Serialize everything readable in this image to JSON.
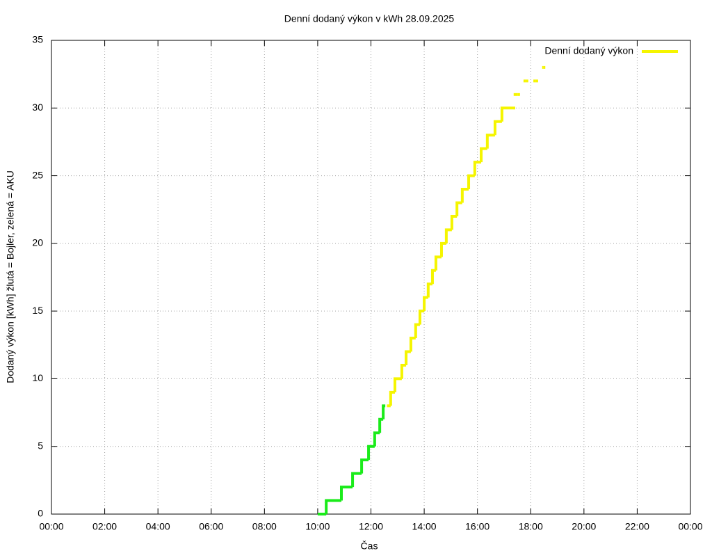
{
  "chart_data": {
    "type": "line",
    "title": "Denní dodaný výkon v kWh 28.09.2025",
    "xlabel": "Čas",
    "ylabel": "Dodaný výkon [kWh]  žlutá = Bojler, zelená = AKU",
    "xlim": [
      0,
      24
    ],
    "xticks": [
      {
        "value": 0,
        "label": "00:00"
      },
      {
        "value": 2,
        "label": "02:00"
      },
      {
        "value": 4,
        "label": "04:00"
      },
      {
        "value": 6,
        "label": "06:00"
      },
      {
        "value": 8,
        "label": "08:00"
      },
      {
        "value": 10,
        "label": "10:00"
      },
      {
        "value": 12,
        "label": "12:00"
      },
      {
        "value": 14,
        "label": "14:00"
      },
      {
        "value": 16,
        "label": "16:00"
      },
      {
        "value": 18,
        "label": "18:00"
      },
      {
        "value": 20,
        "label": "20:00"
      },
      {
        "value": 22,
        "label": "22:00"
      },
      {
        "value": 24,
        "label": "00:00"
      }
    ],
    "ylim": [
      0,
      35
    ],
    "yticks": [
      0,
      5,
      10,
      15,
      20,
      25,
      30,
      35
    ],
    "grid": true,
    "legend": "top-right",
    "series": [
      {
        "color": "#1aeb1a",
        "x": [
          10.0,
          10.32,
          10.89,
          11.31,
          11.65,
          11.91,
          12.14,
          12.33,
          12.46
        ],
        "values": [
          0,
          1,
          2,
          3,
          4,
          5,
          6,
          7,
          8
        ]
      },
      {
        "name": "Denní dodaný výkon",
        "color": "#f5f500",
        "x": [
          12.6,
          12.74,
          12.9,
          13.16,
          13.32,
          13.5,
          13.68,
          13.84,
          14.0,
          14.15,
          14.31,
          14.44,
          14.65,
          14.83,
          15.04,
          15.23,
          15.43,
          15.67,
          15.9,
          16.14,
          16.37,
          16.66,
          16.92,
          17.34,
          null,
          17.36,
          17.52,
          null,
          17.73,
          17.83,
          null,
          18.1,
          18.2,
          null,
          18.43,
          18.47
        ],
        "values": [
          8,
          9,
          10,
          11,
          12,
          13,
          14,
          15,
          16,
          17,
          18,
          19,
          20,
          21,
          22,
          23,
          24,
          25,
          26,
          27,
          28,
          29,
          30,
          30,
          null,
          31,
          31,
          null,
          32,
          32,
          null,
          32,
          32,
          null,
          33,
          33
        ]
      }
    ]
  }
}
